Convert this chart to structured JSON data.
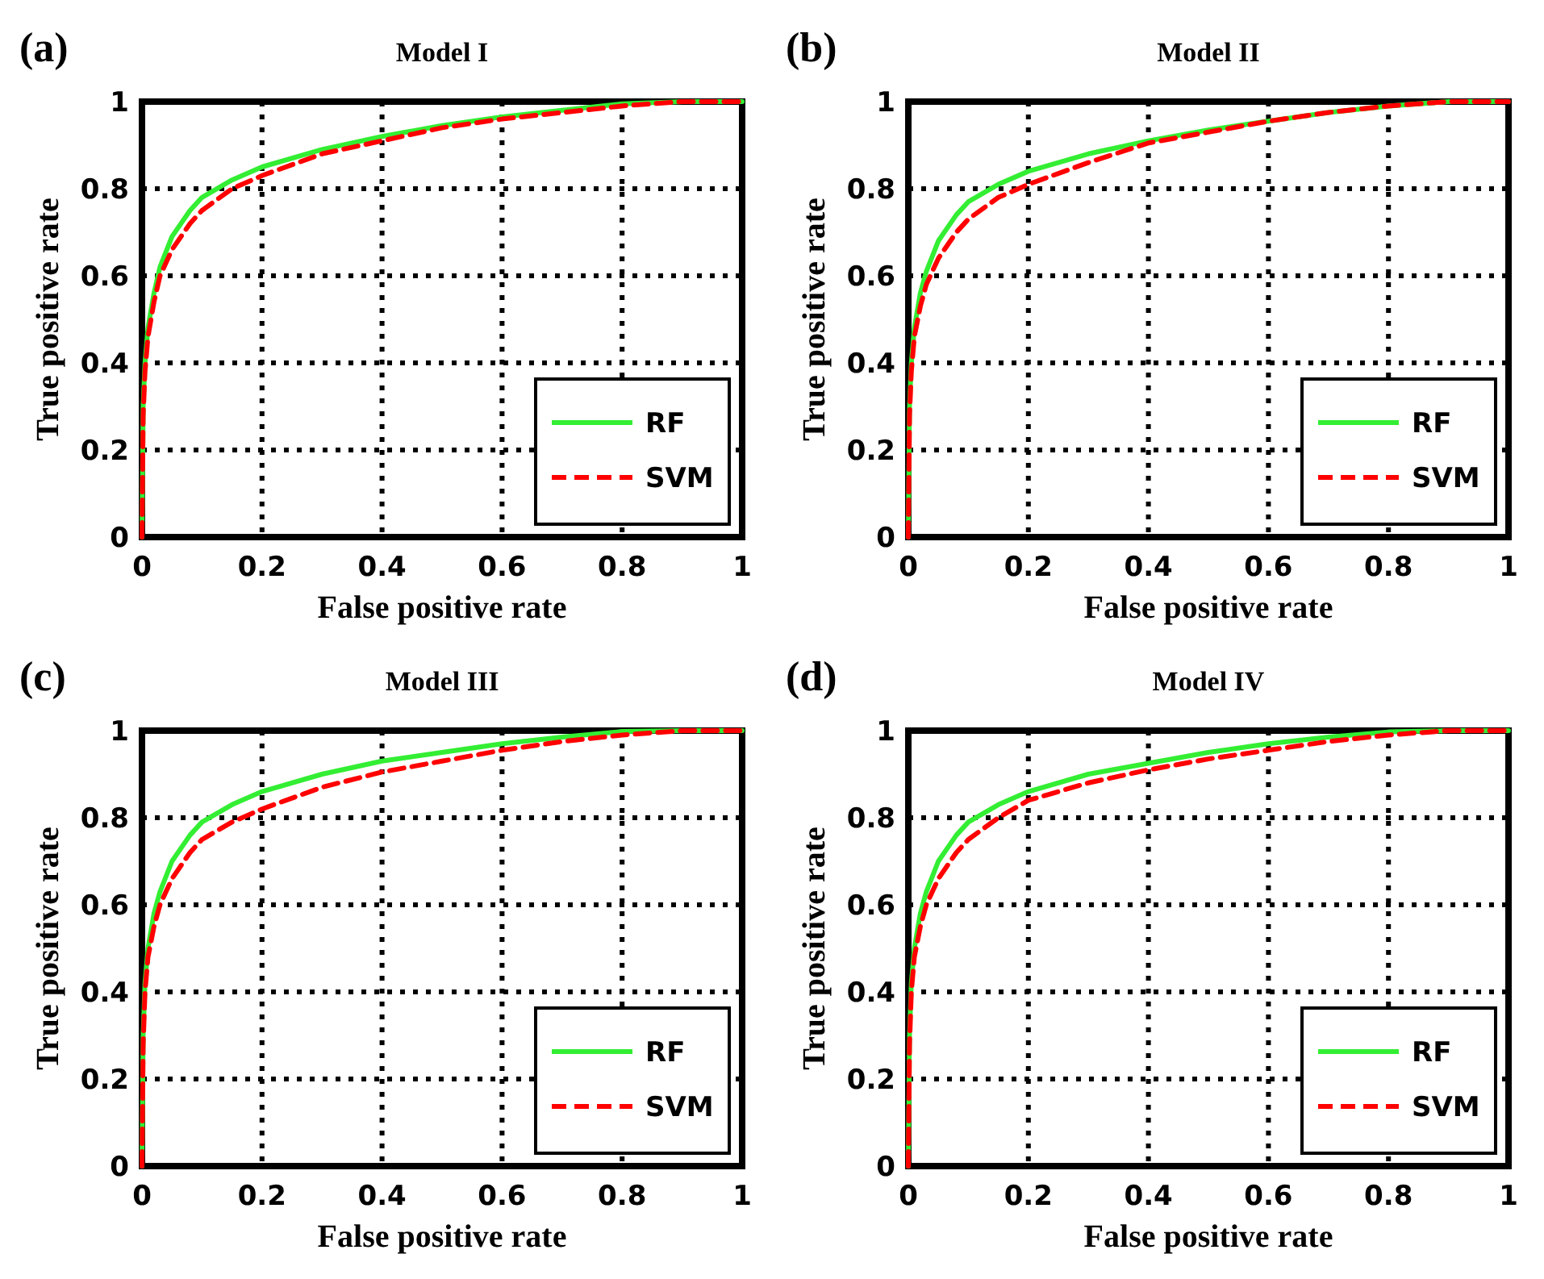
{
  "chart_data": [
    {
      "type": "line",
      "title": "Model I",
      "xlabel": "False positive rate",
      "ylabel": "True positive rate",
      "annotations": [
        "(a)"
      ],
      "x": [
        0,
        0.002,
        0.005,
        0.01,
        0.02,
        0.03,
        0.05,
        0.08,
        0.1,
        0.15,
        0.2,
        0.3,
        0.4,
        0.5,
        0.6,
        0.7,
        0.8,
        0.9,
        1
      ],
      "xlim": [
        0,
        1
      ],
      "ylim": [
        0,
        1
      ],
      "xticks": [
        0,
        0.2,
        0.4,
        0.6,
        0.8,
        1
      ],
      "yticks": [
        0,
        0.2,
        0.4,
        0.6,
        0.8,
        1
      ],
      "grid": true,
      "legend": "bottom right",
      "series": [
        {
          "name": "RF",
          "color": "#33ee33",
          "line_style": "solid",
          "values": [
            0,
            0.3,
            0.4,
            0.48,
            0.56,
            0.62,
            0.69,
            0.75,
            0.78,
            0.82,
            0.85,
            0.89,
            0.92,
            0.945,
            0.965,
            0.98,
            0.995,
            1,
            1
          ]
        },
        {
          "name": "SVM",
          "color": "#ff0000",
          "line_style": "dashed",
          "values": [
            0,
            0.28,
            0.38,
            0.46,
            0.54,
            0.6,
            0.66,
            0.72,
            0.75,
            0.8,
            0.83,
            0.88,
            0.91,
            0.94,
            0.96,
            0.975,
            0.99,
            1,
            1
          ]
        }
      ]
    },
    {
      "type": "line",
      "title": "Model II",
      "xlabel": "False positive rate",
      "ylabel": "True positive rate",
      "annotations": [
        "(b)"
      ],
      "x": [
        0,
        0.002,
        0.005,
        0.01,
        0.02,
        0.03,
        0.05,
        0.08,
        0.1,
        0.15,
        0.2,
        0.3,
        0.4,
        0.5,
        0.6,
        0.7,
        0.8,
        0.9,
        1
      ],
      "xlim": [
        0,
        1
      ],
      "ylim": [
        0,
        1
      ],
      "xticks": [
        0,
        0.2,
        0.4,
        0.6,
        0.8,
        1
      ],
      "yticks": [
        0,
        0.2,
        0.4,
        0.6,
        0.8,
        1
      ],
      "grid": true,
      "legend": "bottom right",
      "series": [
        {
          "name": "RF",
          "color": "#33ee33",
          "line_style": "solid",
          "values": [
            0,
            0.3,
            0.4,
            0.48,
            0.56,
            0.61,
            0.68,
            0.74,
            0.77,
            0.81,
            0.84,
            0.88,
            0.91,
            0.935,
            0.955,
            0.975,
            0.99,
            1,
            1
          ]
        },
        {
          "name": "SVM",
          "color": "#ff0000",
          "line_style": "dashed",
          "values": [
            0,
            0.28,
            0.38,
            0.46,
            0.53,
            0.58,
            0.64,
            0.7,
            0.73,
            0.78,
            0.81,
            0.86,
            0.905,
            0.93,
            0.955,
            0.975,
            0.99,
            1,
            1
          ]
        }
      ]
    },
    {
      "type": "line",
      "title": "Model III",
      "xlabel": "False positive rate",
      "ylabel": "True positive rate",
      "annotations": [
        "(c)"
      ],
      "x": [
        0,
        0.002,
        0.005,
        0.01,
        0.02,
        0.03,
        0.05,
        0.08,
        0.1,
        0.15,
        0.2,
        0.3,
        0.4,
        0.5,
        0.6,
        0.7,
        0.8,
        0.9,
        1
      ],
      "xlim": [
        0,
        1
      ],
      "ylim": [
        0,
        1
      ],
      "xticks": [
        0,
        0.2,
        0.4,
        0.6,
        0.8,
        1
      ],
      "yticks": [
        0,
        0.2,
        0.4,
        0.6,
        0.8,
        1
      ],
      "grid": true,
      "legend": "bottom right",
      "series": [
        {
          "name": "RF",
          "color": "#33ee33",
          "line_style": "solid",
          "values": [
            0,
            0.3,
            0.42,
            0.5,
            0.58,
            0.63,
            0.7,
            0.76,
            0.79,
            0.83,
            0.86,
            0.9,
            0.93,
            0.95,
            0.97,
            0.985,
            0.998,
            1,
            1
          ]
        },
        {
          "name": "SVM",
          "color": "#ff0000",
          "line_style": "dashed",
          "values": [
            0,
            0.28,
            0.4,
            0.48,
            0.55,
            0.6,
            0.66,
            0.72,
            0.75,
            0.79,
            0.82,
            0.87,
            0.905,
            0.93,
            0.955,
            0.975,
            0.99,
            1,
            1
          ]
        }
      ]
    },
    {
      "type": "line",
      "title": "Model IV",
      "xlabel": "False positive rate",
      "ylabel": "True positive rate",
      "annotations": [
        "(d)"
      ],
      "x": [
        0,
        0.002,
        0.005,
        0.01,
        0.02,
        0.03,
        0.05,
        0.08,
        0.1,
        0.15,
        0.2,
        0.3,
        0.4,
        0.5,
        0.6,
        0.7,
        0.8,
        0.9,
        1
      ],
      "xlim": [
        0,
        1
      ],
      "ylim": [
        0,
        1
      ],
      "xticks": [
        0,
        0.2,
        0.4,
        0.6,
        0.8,
        1
      ],
      "yticks": [
        0,
        0.2,
        0.4,
        0.6,
        0.8,
        1
      ],
      "grid": true,
      "legend": "bottom right",
      "series": [
        {
          "name": "RF",
          "color": "#33ee33",
          "line_style": "solid",
          "values": [
            0,
            0.3,
            0.42,
            0.5,
            0.58,
            0.63,
            0.7,
            0.76,
            0.79,
            0.83,
            0.86,
            0.9,
            0.925,
            0.95,
            0.97,
            0.985,
            0.997,
            1,
            1
          ]
        },
        {
          "name": "SVM",
          "color": "#ff0000",
          "line_style": "dashed",
          "values": [
            0,
            0.28,
            0.4,
            0.48,
            0.55,
            0.6,
            0.66,
            0.72,
            0.75,
            0.8,
            0.84,
            0.88,
            0.91,
            0.935,
            0.955,
            0.975,
            0.99,
            1,
            1
          ]
        }
      ]
    }
  ]
}
